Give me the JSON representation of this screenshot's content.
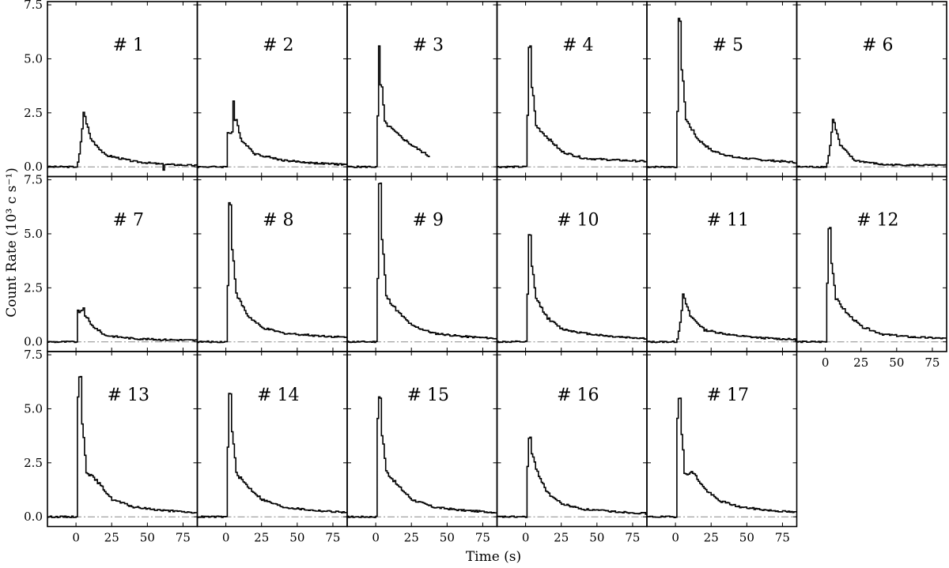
{
  "chart_data": {
    "type": "line",
    "step": true,
    "xlabel": "Time (s)",
    "ylabel": "Count Rate (10³ c s⁻¹)",
    "xlim": [
      -20,
      85
    ],
    "ylim": [
      -0.45,
      7.65
    ],
    "xticks": [
      0,
      25,
      50,
      75
    ],
    "xtick_labels": [
      "0",
      "25",
      "50",
      "75"
    ],
    "yticks": [
      0,
      2.5,
      5,
      7.5
    ],
    "ytick_labels": [
      "0.0",
      "2.5",
      "5.0",
      "7.5"
    ],
    "zero_line": true,
    "layout": {
      "rows": 3,
      "cols": 6
    },
    "panels": [
      {
        "label": "# 1",
        "t_start": 0,
        "peak_time": 5,
        "peak": 2.55,
        "shoulder": 0,
        "tail": [
          [
            10,
            1.3
          ],
          [
            20,
            0.55
          ],
          [
            40,
            0.25
          ],
          [
            60,
            0.12
          ],
          [
            85,
            0.06
          ]
        ],
        "dip": [
          61,
          -0.15
        ]
      },
      {
        "label": "# 2",
        "t_start": 1,
        "peak_time": 5,
        "peak": 3.05,
        "shoulder": 1.6,
        "tail": [
          [
            10,
            1.3
          ],
          [
            20,
            0.6
          ],
          [
            40,
            0.3
          ],
          [
            60,
            0.18
          ],
          [
            85,
            0.1
          ]
        ]
      },
      {
        "label": "# 3",
        "t_start": 1,
        "peak_time": 2,
        "peak": 5.55,
        "shoulder": 2.3,
        "tail": [
          [
            6,
            2.05
          ],
          [
            15,
            1.5
          ],
          [
            25,
            1.0
          ],
          [
            38,
            0.45
          ]
        ],
        "t_end": 38
      },
      {
        "label": "# 4",
        "t_start": 1,
        "peak_time": 2.5,
        "peak": 5.55,
        "shoulder": 2.4,
        "tail": [
          [
            7,
            1.9
          ],
          [
            15,
            1.35
          ],
          [
            25,
            0.7
          ],
          [
            40,
            0.4
          ],
          [
            60,
            0.32
          ],
          [
            85,
            0.25
          ]
        ]
      },
      {
        "label": "# 5",
        "t_start": 1,
        "peak_time": 2.5,
        "peak": 6.8,
        "shoulder": 2.5,
        "tail": [
          [
            7,
            2.2
          ],
          [
            15,
            1.3
          ],
          [
            25,
            0.75
          ],
          [
            40,
            0.45
          ],
          [
            60,
            0.32
          ],
          [
            85,
            0.2
          ]
        ]
      },
      {
        "label": "# 6",
        "t_start": 0,
        "peak_time": 5,
        "peak": 2.25,
        "shoulder": 0,
        "tail": [
          [
            10,
            1.0
          ],
          [
            20,
            0.3
          ],
          [
            40,
            0.1
          ],
          [
            85,
            0.06
          ]
        ]
      },
      {
        "label": "# 7",
        "t_start": 1,
        "peak_time": 5,
        "peak": 1.6,
        "shoulder": 1.4,
        "tail": [
          [
            10,
            0.8
          ],
          [
            20,
            0.3
          ],
          [
            40,
            0.15
          ],
          [
            60,
            0.1
          ],
          [
            85,
            0.07
          ]
        ]
      },
      {
        "label": "# 8",
        "t_start": 1,
        "peak_time": 2.5,
        "peak": 6.4,
        "shoulder": 2.6,
        "tail": [
          [
            7,
            2.2
          ],
          [
            15,
            1.2
          ],
          [
            25,
            0.65
          ],
          [
            40,
            0.4
          ],
          [
            60,
            0.3
          ],
          [
            85,
            0.2
          ]
        ]
      },
      {
        "label": "# 9",
        "t_start": 1,
        "peak_time": 2.5,
        "peak": 7.35,
        "shoulder": 3.0,
        "tail": [
          [
            7,
            2.1
          ],
          [
            15,
            1.4
          ],
          [
            25,
            0.75
          ],
          [
            40,
            0.4
          ],
          [
            60,
            0.25
          ],
          [
            85,
            0.15
          ]
        ]
      },
      {
        "label": "# 10",
        "t_start": 1,
        "peak_time": 2.5,
        "peak": 4.9,
        "shoulder": 2.2,
        "tail": [
          [
            7,
            2.0
          ],
          [
            15,
            1.1
          ],
          [
            25,
            0.6
          ],
          [
            40,
            0.4
          ],
          [
            60,
            0.25
          ],
          [
            85,
            0.15
          ]
        ]
      },
      {
        "label": "# 11",
        "t_start": 0,
        "peak_time": 5,
        "peak": 2.15,
        "shoulder": 0,
        "tail": [
          [
            10,
            1.2
          ],
          [
            20,
            0.55
          ],
          [
            40,
            0.3
          ],
          [
            60,
            0.18
          ],
          [
            85,
            0.1
          ]
        ]
      },
      {
        "label": "# 12",
        "t_start": 1,
        "peak_time": 2.5,
        "peak": 5.3,
        "shoulder": 2.7,
        "tail": [
          [
            7,
            2.0
          ],
          [
            15,
            1.3
          ],
          [
            25,
            0.7
          ],
          [
            40,
            0.35
          ],
          [
            60,
            0.22
          ],
          [
            85,
            0.15
          ]
        ]
      },
      {
        "label": "# 13",
        "t_start": 1,
        "peak_time": 2.5,
        "peak": 6.45,
        "shoulder": 5.6,
        "tail": [
          [
            7,
            2.1
          ],
          [
            15,
            1.6
          ],
          [
            25,
            0.8
          ],
          [
            40,
            0.45
          ],
          [
            60,
            0.3
          ],
          [
            85,
            0.18
          ]
        ]
      },
      {
        "label": "# 14",
        "t_start": 1,
        "peak_time": 2.5,
        "peak": 5.75,
        "shoulder": 3.2,
        "tail": [
          [
            7,
            2.0
          ],
          [
            15,
            1.4
          ],
          [
            25,
            0.8
          ],
          [
            40,
            0.45
          ],
          [
            60,
            0.3
          ],
          [
            85,
            0.2
          ]
        ]
      },
      {
        "label": "# 15",
        "t_start": 1,
        "peak_time": 2.5,
        "peak": 5.5,
        "shoulder": 4.6,
        "tail": [
          [
            7,
            2.1
          ],
          [
            15,
            1.45
          ],
          [
            25,
            0.8
          ],
          [
            40,
            0.45
          ],
          [
            60,
            0.3
          ],
          [
            85,
            0.2
          ]
        ]
      },
      {
        "label": "# 16",
        "t_start": 1,
        "peak_time": 2.5,
        "peak": 3.65,
        "shoulder": 2.3,
        "tail": [
          [
            7,
            2.2
          ],
          [
            15,
            1.1
          ],
          [
            25,
            0.6
          ],
          [
            40,
            0.35
          ],
          [
            60,
            0.25
          ],
          [
            85,
            0.15
          ]
        ]
      },
      {
        "label": "# 17",
        "t_start": 1,
        "peak_time": 2.5,
        "peak": 5.55,
        "shoulder": 4.6,
        "tail": [
          [
            6,
            2.0
          ],
          [
            12,
            2.05
          ],
          [
            20,
            1.3
          ],
          [
            30,
            0.75
          ],
          [
            45,
            0.45
          ],
          [
            65,
            0.3
          ],
          [
            85,
            0.2
          ]
        ]
      }
    ]
  }
}
